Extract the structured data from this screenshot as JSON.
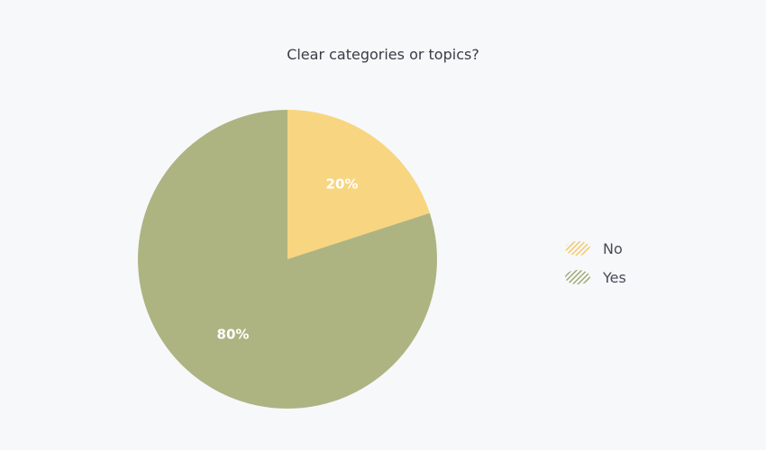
{
  "chart_data": {
    "type": "pie",
    "title": "Clear categories or topics?",
    "legend_position": "right",
    "slices": [
      {
        "label": "No",
        "value": 20,
        "display": "20%",
        "color": "#f8d580"
      },
      {
        "label": "Yes",
        "value": 80,
        "display": "80%",
        "color": "#adb481"
      }
    ]
  }
}
